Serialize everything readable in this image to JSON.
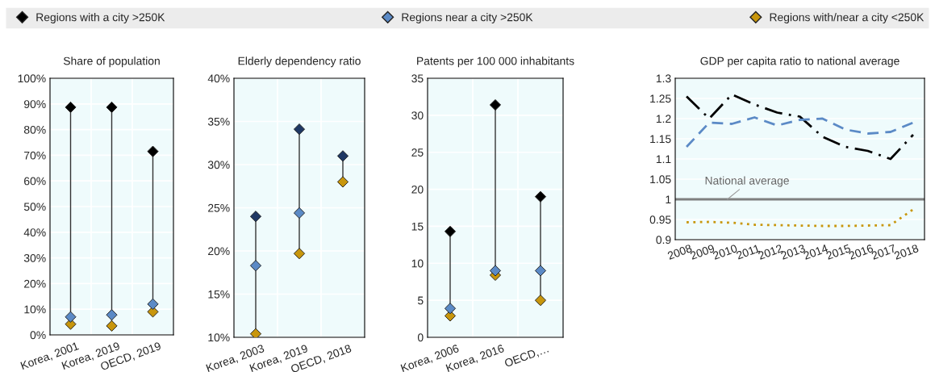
{
  "chart_data": [
    {
      "type": "scatter",
      "title": "Share of population",
      "categories": [
        "Korea, 2001",
        "Korea, 2019",
        "OECD, 2019"
      ],
      "marker": "diamond",
      "legend": "top",
      "grid": true,
      "ylim": [
        0,
        100
      ],
      "yticks": [
        {
          "value": 0,
          "label": "0%"
        },
        {
          "value": 10,
          "label": "10%"
        },
        {
          "value": 20,
          "label": "20%"
        },
        {
          "value": 30,
          "label": "30%"
        },
        {
          "value": 40,
          "label": "40%"
        },
        {
          "value": 50,
          "label": "50%"
        },
        {
          "value": 60,
          "label": "60%"
        },
        {
          "value": 70,
          "label": "70%"
        },
        {
          "value": 80,
          "label": "80%"
        },
        {
          "value": 90,
          "label": "90%"
        },
        {
          "value": 100,
          "label": "100%"
        }
      ],
      "series": [
        {
          "name": "Regions with a city >250K",
          "color": "#000000",
          "values": [
            88.7,
            88.7,
            71.5
          ]
        },
        {
          "name": "Regions near a city >250K",
          "color": "#5b8ac6",
          "values": [
            7,
            7.8,
            12
          ]
        },
        {
          "name": "Regions with/near a city <250K",
          "color": "#c8960c",
          "values": [
            4.2,
            3.5,
            9
          ]
        }
      ]
    },
    {
      "type": "scatter",
      "title": "Elderly dependency ratio",
      "categories": [
        "Korea, 2003",
        "Korea, 2019",
        "OECD, 2018"
      ],
      "marker": "diamond",
      "grid": true,
      "ylim": [
        10,
        40
      ],
      "yticks": [
        {
          "value": 10,
          "label": "10%"
        },
        {
          "value": 15,
          "label": "15%"
        },
        {
          "value": 20,
          "label": "20%"
        },
        {
          "value": 25,
          "label": "25%"
        },
        {
          "value": 30,
          "label": "30%"
        },
        {
          "value": 35,
          "label": "35%"
        },
        {
          "value": 40,
          "label": "40%"
        }
      ],
      "series": [
        {
          "color": "#1f3864",
          "values": [
            24,
            34.1,
            31
          ]
        },
        {
          "color": "#5b8ac6",
          "values": [
            18.3,
            24.4,
            null
          ]
        },
        {
          "color": "#c8960c",
          "values": [
            10.4,
            19.7,
            28
          ]
        }
      ]
    },
    {
      "type": "scatter",
      "title": "Patents per 100 000 inhabitants",
      "categories": [
        "Korea, 2006",
        "Korea, 2016",
        "OECD,…"
      ],
      "marker": "diamond",
      "grid": true,
      "ylim": [
        0,
        35
      ],
      "yticks": [
        0,
        5,
        10,
        15,
        20,
        25,
        30,
        35
      ],
      "series": [
        {
          "color": "#000000",
          "values": [
            14.3,
            31.4,
            19
          ]
        },
        {
          "color": "#5b8ac6",
          "values": [
            3.9,
            9.0,
            9
          ]
        },
        {
          "color": "#c8960c",
          "values": [
            2.9,
            8.4,
            5
          ]
        }
      ]
    },
    {
      "type": "line",
      "title": "GDP per capita ratio to national average",
      "categories": [
        "2008",
        "2009",
        "2010",
        "2011",
        "2012",
        "2013",
        "2014",
        "2015",
        "2016",
        "2017",
        "2018"
      ],
      "grid": "y",
      "ylim": [
        0.9,
        1.3
      ],
      "yticks": [
        0.9,
        0.95,
        1,
        1.05,
        1.1,
        1.15,
        1.2,
        1.25,
        1.3
      ],
      "series": [
        {
          "color": "#000000",
          "line_style": "dashdot",
          "values": [
            1.255,
            1.2,
            1.26,
            1.235,
            1.215,
            1.205,
            1.155,
            1.13,
            1.12,
            1.1,
            1.16
          ]
        },
        {
          "color": "#5b8ac6",
          "line_style": "dashed",
          "values": [
            1.13,
            1.19,
            1.187,
            1.203,
            1.183,
            1.197,
            1.2,
            1.173,
            1.163,
            1.167,
            1.19
          ]
        },
        {
          "color": "#c8960c",
          "line_style": "dotted",
          "values": [
            0.943,
            0.944,
            0.942,
            0.937,
            0.936,
            0.935,
            0.934,
            0.934,
            0.935,
            0.936,
            0.975
          ]
        }
      ],
      "ref_lines": [
        {
          "axis": "y",
          "value": 1,
          "label": "National average",
          "color": "#7f7f7f",
          "line_style": "solid"
        }
      ]
    }
  ]
}
